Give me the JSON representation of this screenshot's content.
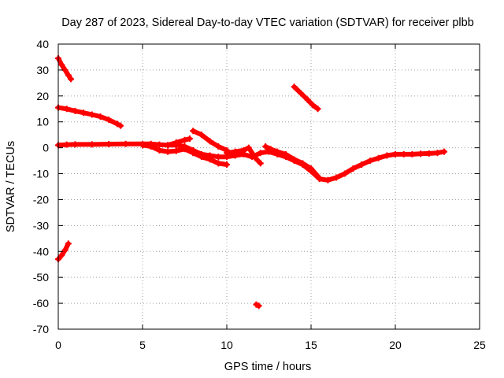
{
  "chart_data": {
    "type": "scatter",
    "title": "Day 287 of 2023, Sidereal Day-to-day VTEC variation (SDTVAR) for receiver plbb",
    "xlabel": "GPS time / hours",
    "ylabel": "SDTVAR / TECUs",
    "xlim": [
      0,
      25
    ],
    "ylim": [
      -70,
      40
    ],
    "xticks": [
      0,
      5,
      10,
      15,
      20,
      25
    ],
    "yticks": [
      40,
      30,
      20,
      10,
      0,
      -10,
      -20,
      -30,
      -40,
      -50,
      -60,
      -70
    ],
    "grid": true,
    "color": "#ff0000",
    "series": [
      {
        "name": "seg-1",
        "x": [
          0.0,
          0.2,
          0.4,
          0.6,
          0.75
        ],
        "y": [
          34.5,
          32.0,
          30.0,
          28.0,
          26.5
        ]
      },
      {
        "name": "seg-2",
        "x": [
          0.0,
          0.5,
          1.0,
          1.5,
          2.0,
          2.5,
          3.0,
          3.5,
          3.7
        ],
        "y": [
          15.5,
          15.0,
          14.2,
          13.5,
          12.8,
          12.0,
          10.8,
          9.2,
          8.5
        ]
      },
      {
        "name": "seg-3",
        "x": [
          0.0,
          0.5,
          1.0,
          2.0,
          3.0,
          4.0,
          5.0,
          5.5,
          6.0,
          6.5,
          7.0,
          7.5,
          8.0,
          8.5,
          9.0,
          9.5,
          10.0,
          10.5,
          11.0,
          11.5,
          12.0,
          12.5,
          13.0,
          13.5,
          14.0,
          14.5,
          15.0,
          15.5,
          16.0,
          16.5,
          17.0,
          17.5,
          18.0,
          18.5,
          19.0,
          19.5,
          20.0,
          20.5,
          21.0,
          21.5,
          22.0,
          22.5,
          22.9
        ],
        "y": [
          1.0,
          1.2,
          1.3,
          1.3,
          1.4,
          1.5,
          1.5,
          1.5,
          1.2,
          1.0,
          1.0,
          0.5,
          -1.0,
          -2.5,
          -3.0,
          -3.5,
          -3.5,
          -3.0,
          -2.5,
          -3.5,
          -2.0,
          -1.5,
          -2.5,
          -3.5,
          -5.0,
          -6.5,
          -9.0,
          -12.0,
          -12.5,
          -11.5,
          -10.0,
          -8.0,
          -6.5,
          -5.0,
          -4.0,
          -3.0,
          -2.5,
          -2.5,
          -2.5,
          -2.3,
          -2.2,
          -2.0,
          -1.5
        ]
      },
      {
        "name": "seg-4",
        "x": [
          5.0,
          5.5,
          6.0,
          6.5,
          7.0,
          7.5,
          8.0,
          8.5,
          9.0,
          9.5,
          10.0
        ],
        "y": [
          1.0,
          0.5,
          -1.0,
          -1.5,
          -1.2,
          -0.5,
          -2.0,
          -3.5,
          -4.5,
          -6.0,
          -6.5
        ]
      },
      {
        "name": "seg-5",
        "x": [
          6.5,
          7.0,
          7.5,
          7.8
        ],
        "y": [
          1.0,
          2.0,
          3.0,
          3.5
        ]
      },
      {
        "name": "seg-6",
        "x": [
          8.0,
          8.5,
          9.0,
          9.5,
          10.0
        ],
        "y": [
          6.5,
          5.0,
          2.5,
          0.5,
          -1.0
        ]
      },
      {
        "name": "seg-7",
        "x": [
          10.0,
          10.5,
          11.0,
          11.3,
          11.7,
          12.0
        ],
        "y": [
          -2.0,
          -1.5,
          -1.0,
          0.0,
          -4.0,
          -6.0
        ]
      },
      {
        "name": "seg-8",
        "x": [
          12.3,
          12.6,
          13.0,
          13.5,
          14.0,
          14.5,
          15.0,
          15.4
        ],
        "y": [
          0.5,
          -0.5,
          -1.5,
          -2.5,
          -4.5,
          -6.0,
          -8.0,
          -11.0
        ]
      },
      {
        "name": "seg-9",
        "x": [
          14.0,
          14.4,
          14.8,
          15.1,
          15.4
        ],
        "y": [
          23.5,
          21.0,
          18.5,
          16.5,
          15.0
        ]
      },
      {
        "name": "seg-10",
        "x": [
          0.0,
          0.2,
          0.4,
          0.6
        ],
        "y": [
          -43.0,
          -41.5,
          -39.5,
          -37.0
        ]
      },
      {
        "name": "seg-11",
        "x": [
          11.75,
          11.9
        ],
        "y": [
          -60.5,
          -61.0
        ]
      }
    ]
  }
}
